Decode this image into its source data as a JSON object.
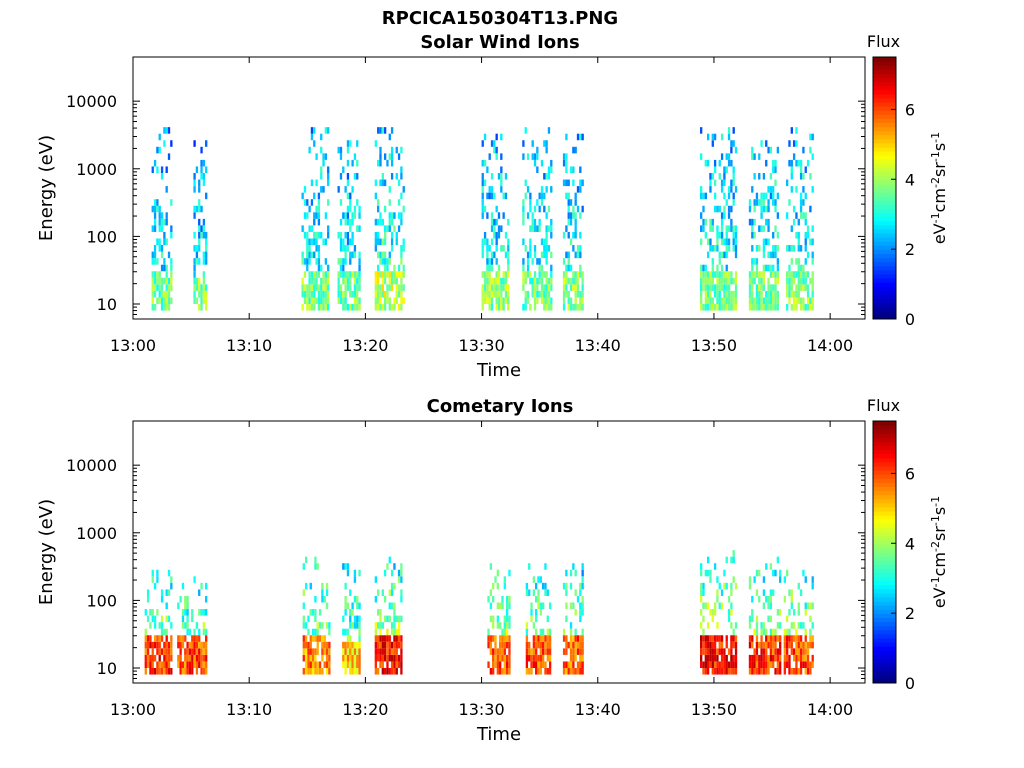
{
  "figure_title": "RPCICA150304T13.PNG",
  "chart_data": [
    {
      "type": "heatmap",
      "title": "Solar Wind Ions",
      "xlabel": "Time",
      "ylabel": "Energy (eV)",
      "x_ticks": [
        "13:00",
        "13:10",
        "13:20",
        "13:30",
        "13:40",
        "13:50",
        "14:00"
      ],
      "x_range_minutes": [
        0,
        63
      ],
      "y_ticks": [
        "10",
        "100",
        "1000",
        "10000"
      ],
      "y_scale": "log",
      "y_range": [
        6,
        45000
      ],
      "colorbar": {
        "title": "Flux",
        "label": "eV-1cm-2sr-1s-1",
        "ticks": [
          "0",
          "2",
          "4",
          "6"
        ],
        "range": [
          0,
          7.5
        ],
        "colormap": "jet"
      },
      "bursts": [
        {
          "start": 1.6,
          "end": 3.3,
          "low_energy": 28,
          "low_flux": 3.6,
          "high_energy": 3500,
          "high_flux": 2.1
        },
        {
          "start": 5.2,
          "end": 6.4,
          "low_energy": 20,
          "low_flux": 3.8,
          "high_energy": 2500,
          "high_flux": 2.0
        },
        {
          "start": 14.5,
          "end": 16.8,
          "low_energy": 25,
          "low_flux": 3.7,
          "high_energy": 3500,
          "high_flux": 2.3
        },
        {
          "start": 17.6,
          "end": 19.5,
          "low_energy": 30,
          "low_flux": 3.6,
          "high_energy": 3000,
          "high_flux": 2.2
        },
        {
          "start": 20.8,
          "end": 23.2,
          "low_energy": 30,
          "low_flux": 4.2,
          "high_energy": 3500,
          "high_flux": 2.4
        },
        {
          "start": 30.0,
          "end": 32.2,
          "low_energy": 25,
          "low_flux": 3.8,
          "high_energy": 4000,
          "high_flux": 2.2
        },
        {
          "start": 33.5,
          "end": 36.0,
          "low_energy": 25,
          "low_flux": 3.6,
          "high_energy": 3500,
          "high_flux": 2.3
        },
        {
          "start": 37.0,
          "end": 38.8,
          "low_energy": 25,
          "low_flux": 3.8,
          "high_energy": 3000,
          "high_flux": 2.2
        },
        {
          "start": 48.8,
          "end": 52.0,
          "low_energy": 30,
          "low_flux": 3.6,
          "high_energy": 4000,
          "high_flux": 2.3
        },
        {
          "start": 53.0,
          "end": 55.5,
          "low_energy": 25,
          "low_flux": 3.7,
          "high_energy": 3000,
          "high_flux": 2.4
        },
        {
          "start": 56.2,
          "end": 58.6,
          "low_energy": 25,
          "low_flux": 3.8,
          "high_energy": 3500,
          "high_flux": 2.3
        }
      ]
    },
    {
      "type": "heatmap",
      "title": "Cometary Ions",
      "xlabel": "Time",
      "ylabel": "Energy (eV)",
      "x_ticks": [
        "13:00",
        "13:10",
        "13:20",
        "13:30",
        "13:40",
        "13:50",
        "14:00"
      ],
      "x_range_minutes": [
        0,
        63
      ],
      "y_ticks": [
        "10",
        "100",
        "1000",
        "10000"
      ],
      "y_scale": "log",
      "y_range": [
        6,
        45000
      ],
      "colorbar": {
        "title": "Flux",
        "label": "eV-1cm-2sr-1s-1",
        "ticks": [
          "0",
          "2",
          "4",
          "6"
        ],
        "range": [
          0,
          7.5
        ],
        "colormap": "jet"
      },
      "bursts": [
        {
          "start": 1.0,
          "end": 3.3,
          "low_energy": 25,
          "low_flux": 6.2,
          "high_energy": 250,
          "high_flux": 2.6
        },
        {
          "start": 3.8,
          "end": 6.4,
          "low_energy": 25,
          "low_flux": 6.0,
          "high_energy": 200,
          "high_flux": 2.6
        },
        {
          "start": 14.6,
          "end": 16.8,
          "low_energy": 25,
          "low_flux": 5.6,
          "high_energy": 400,
          "high_flux": 2.8
        },
        {
          "start": 18.0,
          "end": 19.5,
          "low_energy": 20,
          "low_flux": 5.0,
          "high_energy": 300,
          "high_flux": 2.6
        },
        {
          "start": 20.8,
          "end": 23.0,
          "low_energy": 25,
          "low_flux": 6.4,
          "high_energy": 400,
          "high_flux": 2.8
        },
        {
          "start": 30.5,
          "end": 32.5,
          "low_energy": 25,
          "low_flux": 6.0,
          "high_energy": 300,
          "high_flux": 2.8
        },
        {
          "start": 33.8,
          "end": 36.0,
          "low_energy": 25,
          "low_flux": 6.0,
          "high_energy": 300,
          "high_flux": 2.8
        },
        {
          "start": 37.0,
          "end": 38.8,
          "low_energy": 25,
          "low_flux": 5.8,
          "high_energy": 300,
          "high_flux": 2.6
        },
        {
          "start": 48.8,
          "end": 52.0,
          "low_energy": 25,
          "low_flux": 6.5,
          "high_energy": 500,
          "high_flux": 2.8
        },
        {
          "start": 53.0,
          "end": 55.8,
          "low_energy": 25,
          "low_flux": 6.2,
          "high_energy": 400,
          "high_flux": 2.8
        },
        {
          "start": 56.0,
          "end": 58.6,
          "low_energy": 25,
          "low_flux": 6.0,
          "high_energy": 400,
          "high_flux": 2.8
        }
      ]
    }
  ]
}
